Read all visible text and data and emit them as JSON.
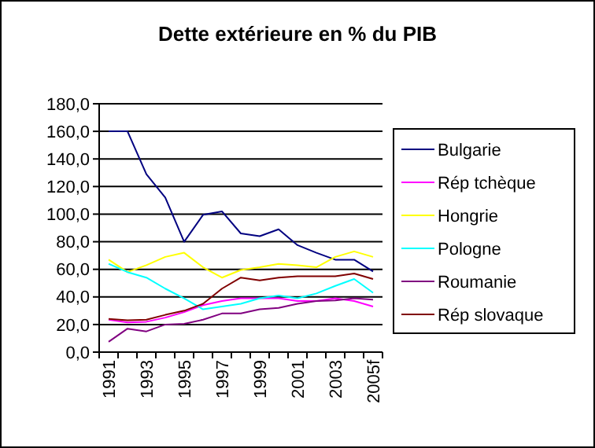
{
  "chart_data": {
    "type": "line",
    "title": "Dette extérieure en % du PIB",
    "categories": [
      "1991",
      null,
      "1993",
      null,
      "1995",
      null,
      "1997",
      null,
      "1999",
      null,
      "2001",
      null,
      "2003",
      null,
      "2005f"
    ],
    "series": [
      {
        "name": "Bulgarie",
        "color": "#000080",
        "values": [
          160,
          160,
          129,
          112,
          80,
          99.5,
          102,
          86,
          84,
          89,
          77.5,
          72,
          67,
          67,
          58.5
        ]
      },
      {
        "name": "Rép tchèque",
        "color": "#ff00ff",
        "values": [
          23.5,
          21.5,
          22,
          25,
          29,
          34,
          37,
          39,
          39,
          39,
          37,
          37,
          39,
          37,
          33
        ]
      },
      {
        "name": "Hongrie",
        "color": "#ffff00",
        "values": [
          67,
          58,
          63,
          69,
          72,
          61.5,
          54,
          59.5,
          61.5,
          64,
          63,
          61.5,
          69,
          73,
          69
        ]
      },
      {
        "name": "Pologne",
        "color": "#00ffff",
        "values": [
          64,
          58,
          54,
          46,
          39,
          31,
          33,
          35,
          39,
          41,
          39,
          42.5,
          48,
          53,
          43
        ]
      },
      {
        "name": "Roumanie",
        "color": "#800080",
        "values": [
          7.5,
          17,
          15,
          20,
          20.5,
          23.5,
          28,
          28,
          31,
          32,
          35,
          37,
          37.5,
          39,
          38
        ]
      },
      {
        "name": "Rép slovaque",
        "color": "#800000",
        "values": [
          24,
          23,
          23.5,
          27,
          30,
          35,
          46,
          54,
          52,
          54,
          55,
          55,
          55,
          57,
          53
        ]
      }
    ],
    "ylim": [
      0,
      180
    ],
    "yticks": [
      {
        "value": 0,
        "label": "0,0"
      },
      {
        "value": 20,
        "label": "20,0"
      },
      {
        "value": 40,
        "label": "40,0"
      },
      {
        "value": 60,
        "label": "60,0"
      },
      {
        "value": 80,
        "label": "80,0"
      },
      {
        "value": 100,
        "label": "100,0"
      },
      {
        "value": 120,
        "label": "120,0"
      },
      {
        "value": 140,
        "label": "140,0"
      },
      {
        "value": 160,
        "label": "160,0"
      },
      {
        "value": 180,
        "label": "180,0"
      }
    ],
    "grid": "y",
    "legend": "right",
    "marker": "none",
    "line_style": "solid"
  }
}
